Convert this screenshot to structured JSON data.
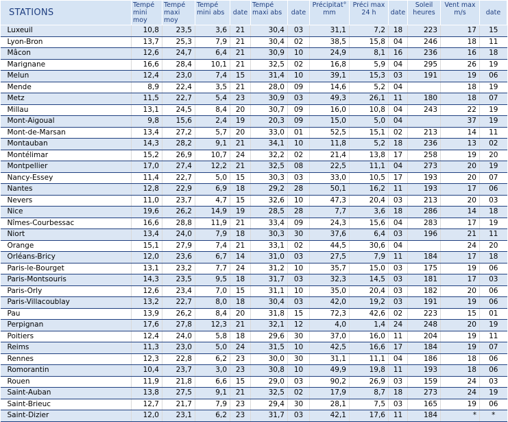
{
  "headers": {
    "stations": "STATIONS",
    "tmin_moy": [
      "Tempé",
      "mini moy"
    ],
    "tmax_moy": [
      "Tempé",
      "maxi moy"
    ],
    "tmin_abs": [
      "Tempé",
      "mini abs"
    ],
    "date1": "date",
    "tmax_abs": [
      "Tempé",
      "maxi abs"
    ],
    "date2": "date",
    "precip": [
      "Précipitat°",
      "mm"
    ],
    "precip_max": [
      "Préci max",
      "24 h"
    ],
    "date3": "date",
    "soleil": [
      "Soleil",
      "heures"
    ],
    "vent": [
      "Vent max",
      "m/s"
    ],
    "date4": "date"
  },
  "rows": [
    [
      "Luxeuil",
      "10,8",
      "23,5",
      "3,6",
      "21",
      "30,4",
      "03",
      "31,1",
      "7,2",
      "18",
      "223",
      "17",
      "15"
    ],
    [
      "Lyon-Bron",
      "13,7",
      "25,3",
      "7,9",
      "21",
      "30,4",
      "02",
      "38,5",
      "15,8",
      "04",
      "246",
      "18",
      "11"
    ],
    [
      "Mâcon",
      "12,6",
      "24,7",
      "6,4",
      "21",
      "30,9",
      "10",
      "24,9",
      "8,1",
      "16",
      "236",
      "16",
      "18"
    ],
    [
      "Marignane",
      "16,6",
      "28,4",
      "10,1",
      "21",
      "32,5",
      "02",
      "16,8",
      "5,9",
      "04",
      "295",
      "26",
      "19"
    ],
    [
      "Melun",
      "12,4",
      "23,0",
      "7,4",
      "15",
      "31,4",
      "10",
      "39,1",
      "15,3",
      "03",
      "191",
      "19",
      "06"
    ],
    [
      "Mende",
      "8,9",
      "22,4",
      "3,5",
      "21",
      "28,0",
      "09",
      "14,6",
      "5,2",
      "04",
      "",
      "18",
      "19"
    ],
    [
      "Metz",
      "11,5",
      "22,7",
      "5,4",
      "23",
      "30,9",
      "03",
      "49,3",
      "26,1",
      "11",
      "180",
      "18",
      "07"
    ],
    [
      "Millau",
      "13,1",
      "24,5",
      "8,4",
      "20",
      "30,7",
      "09",
      "16,0",
      "10,8",
      "04",
      "243",
      "22",
      "19"
    ],
    [
      "Mont-Aigoual",
      "9,8",
      "15,6",
      "2,4",
      "19",
      "20,3",
      "09",
      "15,0",
      "5,0",
      "04",
      "",
      "37",
      "19"
    ],
    [
      "Mont-de-Marsan",
      "13,4",
      "27,2",
      "5,7",
      "20",
      "33,0",
      "01",
      "52,5",
      "15,1",
      "02",
      "213",
      "14",
      "11"
    ],
    [
      "Montauban",
      "14,3",
      "28,2",
      "9,1",
      "21",
      "34,1",
      "10",
      "11,8",
      "5,2",
      "18",
      "236",
      "13",
      "02"
    ],
    [
      "Montélimar",
      "15,2",
      "26,9",
      "10,7",
      "24",
      "32,2",
      "02",
      "21,4",
      "13,8",
      "17",
      "258",
      "19",
      "20"
    ],
    [
      "Montpellier",
      "17,0",
      "27,4",
      "12,2",
      "21",
      "32,5",
      "08",
      "22,5",
      "11,1",
      "04",
      "273",
      "20",
      "19"
    ],
    [
      "Nancy-Essey",
      "11,4",
      "22,7",
      "5,0",
      "15",
      "30,3",
      "03",
      "33,0",
      "10,5",
      "17",
      "193",
      "20",
      "07"
    ],
    [
      "Nantes",
      "12,8",
      "22,9",
      "6,9",
      "18",
      "29,2",
      "28",
      "50,1",
      "16,2",
      "11",
      "193",
      "17",
      "06"
    ],
    [
      "Nevers",
      "11,0",
      "23,7",
      "4,7",
      "15",
      "32,6",
      "10",
      "47,3",
      "20,4",
      "03",
      "213",
      "20",
      "03"
    ],
    [
      "Nice",
      "19,6",
      "26,2",
      "14,9",
      "19",
      "28,5",
      "28",
      "7,7",
      "3,6",
      "18",
      "286",
      "14",
      "18"
    ],
    [
      "Nîmes-Courbessac",
      "16,6",
      "28,8",
      "11,9",
      "21",
      "33,4",
      "09",
      "24,3",
      "15,6",
      "04",
      "283",
      "17",
      "19"
    ],
    [
      "Niort",
      "13,4",
      "24,0",
      "7,9",
      "18",
      "30,3",
      "30",
      "37,6",
      "6,4",
      "03",
      "196",
      "21",
      "11"
    ],
    [
      "Orange",
      "15,1",
      "27,9",
      "7,4",
      "21",
      "33,1",
      "02",
      "44,5",
      "30,6",
      "04",
      "",
      "24",
      "20"
    ],
    [
      "Orléans-Bricy",
      "12,0",
      "23,6",
      "6,7",
      "14",
      "31,0",
      "03",
      "27,5",
      "7,9",
      "11",
      "184",
      "17",
      "18"
    ],
    [
      "Paris-le-Bourget",
      "13,1",
      "23,2",
      "7,7",
      "24",
      "31,2",
      "10",
      "35,7",
      "15,0",
      "03",
      "175",
      "19",
      "06"
    ],
    [
      "Paris-Montsouris",
      "14,3",
      "23,5",
      "9,5",
      "18",
      "31,7",
      "03",
      "32,3",
      "14,5",
      "03",
      "181",
      "17",
      "03"
    ],
    [
      "Paris-Orly",
      "12,6",
      "23,4",
      "7,0",
      "15",
      "31,1",
      "10",
      "35,0",
      "20,4",
      "03",
      "182",
      "20",
      "06"
    ],
    [
      "Paris-Villacoublay",
      "13,2",
      "22,7",
      "8,0",
      "18",
      "30,4",
      "03",
      "42,0",
      "19,2",
      "03",
      "191",
      "19",
      "06"
    ],
    [
      "Pau",
      "13,9",
      "26,2",
      "8,4",
      "20",
      "31,8",
      "15",
      "72,3",
      "42,6",
      "02",
      "223",
      "15",
      "01"
    ],
    [
      "Perpignan",
      "17,6",
      "27,8",
      "12,3",
      "21",
      "32,1",
      "12",
      "4,0",
      "1,4",
      "24",
      "248",
      "20",
      "19"
    ],
    [
      "Poitiers",
      "12,4",
      "24,0",
      "5,8",
      "18",
      "29,6",
      "30",
      "37,0",
      "16,0",
      "11",
      "204",
      "19",
      "11"
    ],
    [
      "Reims",
      "11,3",
      "23,0",
      "5,0",
      "24",
      "31,5",
      "10",
      "42,5",
      "16,6",
      "17",
      "184",
      "19",
      "07"
    ],
    [
      "Rennes",
      "12,3",
      "22,8",
      "6,2",
      "23",
      "30,0",
      "30",
      "31,1",
      "11,1",
      "04",
      "186",
      "18",
      "06"
    ],
    [
      "Romorantin",
      "10,4",
      "23,7",
      "3,0",
      "23",
      "30,8",
      "10",
      "49,9",
      "19,8",
      "11",
      "193",
      "18",
      "06"
    ],
    [
      "Rouen",
      "11,9",
      "21,8",
      "6,6",
      "15",
      "29,0",
      "03",
      "90,2",
      "26,9",
      "03",
      "159",
      "24",
      "03"
    ],
    [
      "Saint-Auban",
      "13,8",
      "27,5",
      "9,1",
      "21",
      "32,5",
      "02",
      "17,9",
      "8,7",
      "18",
      "273",
      "24",
      "19"
    ],
    [
      "Saint-Brieuc",
      "12,7",
      "21,7",
      "7,9",
      "23",
      "29,4",
      "30",
      "28,1",
      "7,5",
      "03",
      "165",
      "19",
      "06"
    ],
    [
      "Saint-Dizier",
      "12,0",
      "23,1",
      "6,2",
      "23",
      "31,7",
      "03",
      "42,1",
      "17,6",
      "11",
      "184",
      "*",
      "*"
    ]
  ]
}
